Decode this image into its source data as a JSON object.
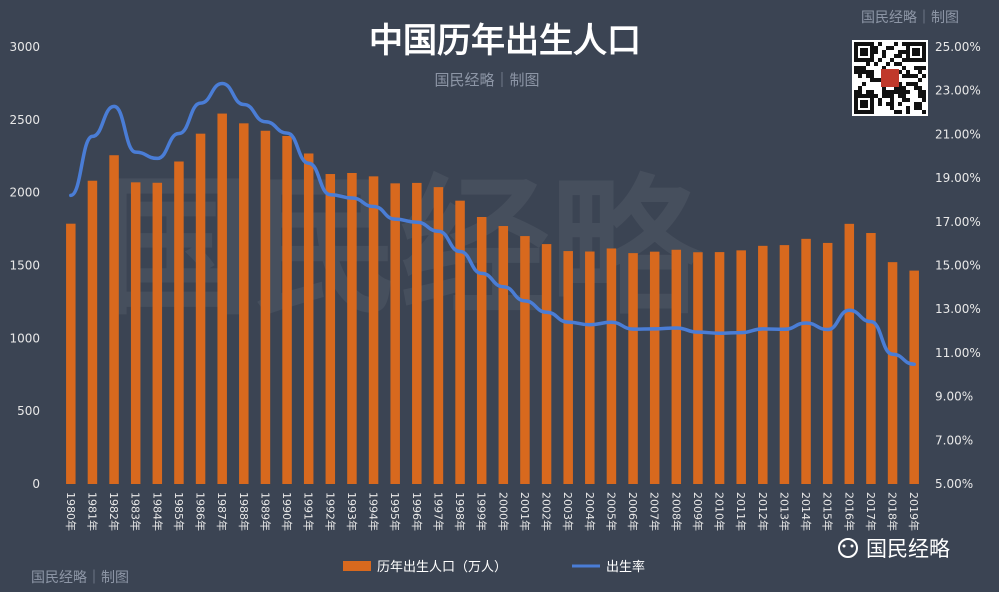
{
  "title": "中国历年出生人口",
  "credit_text": "国民经略｜制图",
  "brand_text": "国民经略",
  "watermark_text": "国民经略",
  "colors": {
    "background": "#3b4453",
    "bar": "#d8691e",
    "line": "#4a7dd6",
    "text": "#ffffff"
  },
  "chart_data": {
    "type": "bar",
    "categories": [
      "1980年",
      "1981年",
      "1982年",
      "1983年",
      "1984年",
      "1985年",
      "1986年",
      "1987年",
      "1988年",
      "1989年",
      "1990年",
      "1991年",
      "1992年",
      "1993年",
      "1994年",
      "1995年",
      "1996年",
      "1997年",
      "1998年",
      "1999年",
      "2000年",
      "2001年",
      "2002年",
      "2003年",
      "2004年",
      "2005年",
      "2006年",
      "2007年",
      "2008年",
      "2009年",
      "2010年",
      "2011年",
      "2012年",
      "2013年",
      "2014年",
      "2015年",
      "2016年",
      "2017年",
      "2018年",
      "2019年"
    ],
    "series": [
      {
        "name": "历年出生人口（万人）",
        "type": "bar",
        "axis": "left",
        "values": [
          1787,
          2082,
          2257,
          2071,
          2068,
          2214,
          2405,
          2543,
          2476,
          2425,
          2389,
          2269,
          2128,
          2135,
          2112,
          2064,
          2067,
          2038,
          1945,
          1833,
          1771,
          1702,
          1647,
          1599,
          1596,
          1617,
          1585,
          1595,
          1608,
          1591,
          1592,
          1604,
          1635,
          1640,
          1683,
          1655,
          1786,
          1723,
          1523,
          1465
        ]
      },
      {
        "name": "出生率",
        "type": "line",
        "axis": "right",
        "values": [
          18.21,
          20.91,
          22.28,
          20.19,
          19.9,
          21.04,
          22.43,
          23.33,
          22.37,
          21.58,
          21.06,
          19.68,
          18.24,
          18.09,
          17.7,
          17.12,
          16.98,
          16.57,
          15.64,
          14.64,
          14.03,
          13.38,
          12.86,
          12.41,
          12.29,
          12.4,
          12.09,
          12.1,
          12.14,
          11.95,
          11.9,
          11.93,
          12.1,
          12.08,
          12.37,
          12.07,
          12.95,
          12.43,
          10.94,
          10.48
        ]
      }
    ],
    "y_left": {
      "min": 0,
      "max": 3000,
      "ticks": [
        "0",
        "500",
        "1000",
        "1500",
        "2000",
        "2500",
        "3000"
      ]
    },
    "y_right": {
      "min": 5,
      "max": 25,
      "ticks": [
        "5.00%",
        "7.00%",
        "9.00%",
        "11.00%",
        "13.00%",
        "15.00%",
        "17.00%",
        "19.00%",
        "21.00%",
        "23.00%",
        "25.00%"
      ]
    },
    "grid": false,
    "legend_position": "bottom-center"
  }
}
